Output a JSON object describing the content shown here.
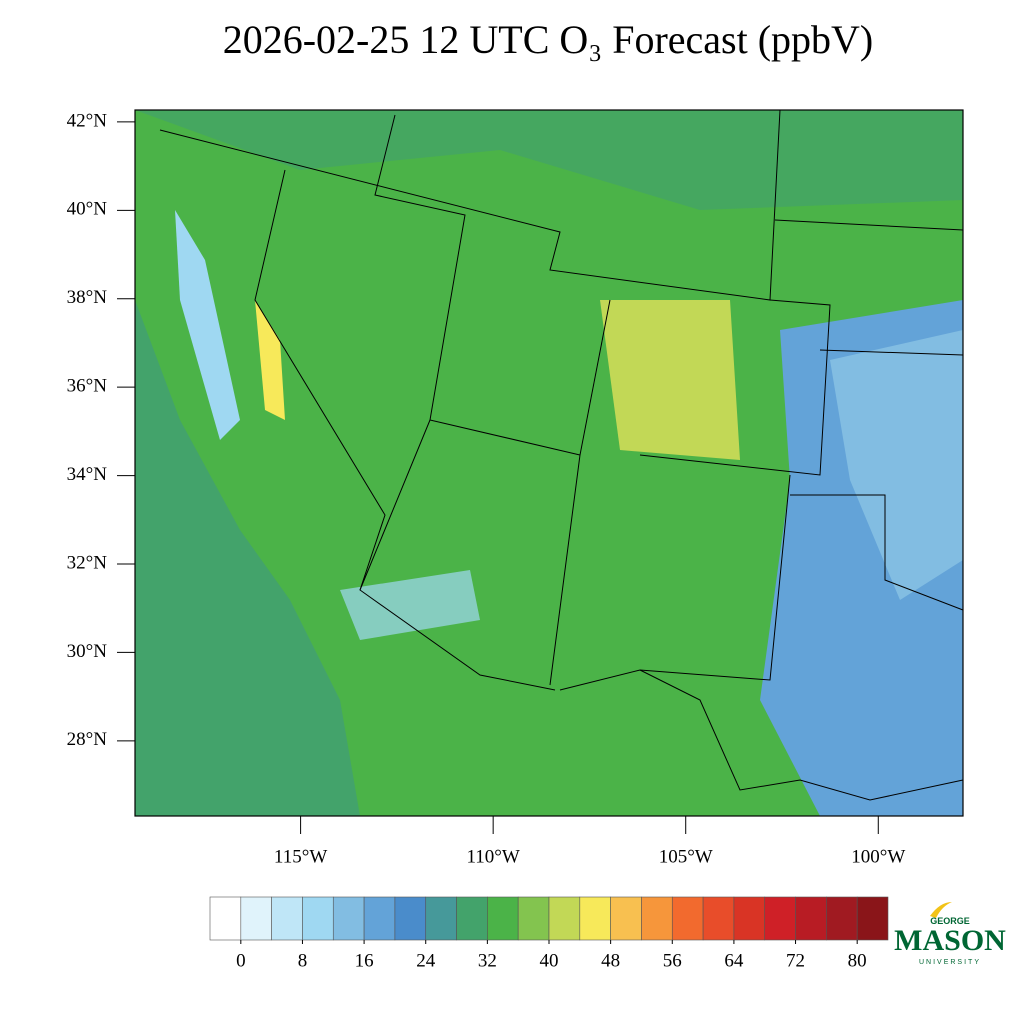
{
  "chart_data": {
    "type": "map",
    "title": "2026-02-25 12 UTC O₃ Forecast (ppbV)",
    "xlim": [
      -119.3,
      -97.8
    ],
    "xticks": [
      {
        "value": -115,
        "label": "115°W"
      },
      {
        "value": -110,
        "label": "110°W"
      },
      {
        "value": -105,
        "label": "105°W"
      },
      {
        "value": -100,
        "label": "100°W"
      }
    ],
    "ylim": [
      26.3,
      42.27
    ],
    "yticks": [
      {
        "value": 28,
        "label": "28°N"
      },
      {
        "value": 30,
        "label": "30°N"
      },
      {
        "value": 32,
        "label": "32°N"
      },
      {
        "value": 34,
        "label": "34°N"
      },
      {
        "value": 36,
        "label": "36°N"
      },
      {
        "value": 38,
        "label": "38°N"
      },
      {
        "value": 40,
        "label": "40°N"
      },
      {
        "value": 42,
        "label": "42°N"
      }
    ],
    "colorbar": {
      "colors": [
        "#ffffff",
        "#e0f3fb",
        "#bfe6f7",
        "#9fd8f2",
        "#82bde2",
        "#63a3d8",
        "#4a8ccb",
        "#46999a",
        "#43a36b",
        "#4bb348",
        "#83c44f",
        "#c2d856",
        "#f7e95a",
        "#f8c050",
        "#f6963b",
        "#f26a2e",
        "#e84d2a",
        "#d93425",
        "#cf2027",
        "#b81c24",
        "#a01a21",
        "#8a1519"
      ],
      "lim": [
        -4,
        84
      ],
      "ticks": [
        0,
        8,
        16,
        24,
        32,
        40,
        48,
        56,
        64,
        72,
        80
      ]
    }
  },
  "logo": {
    "top": "GEORGE",
    "name": "MASON",
    "bottom": "UNIVERSITY"
  }
}
